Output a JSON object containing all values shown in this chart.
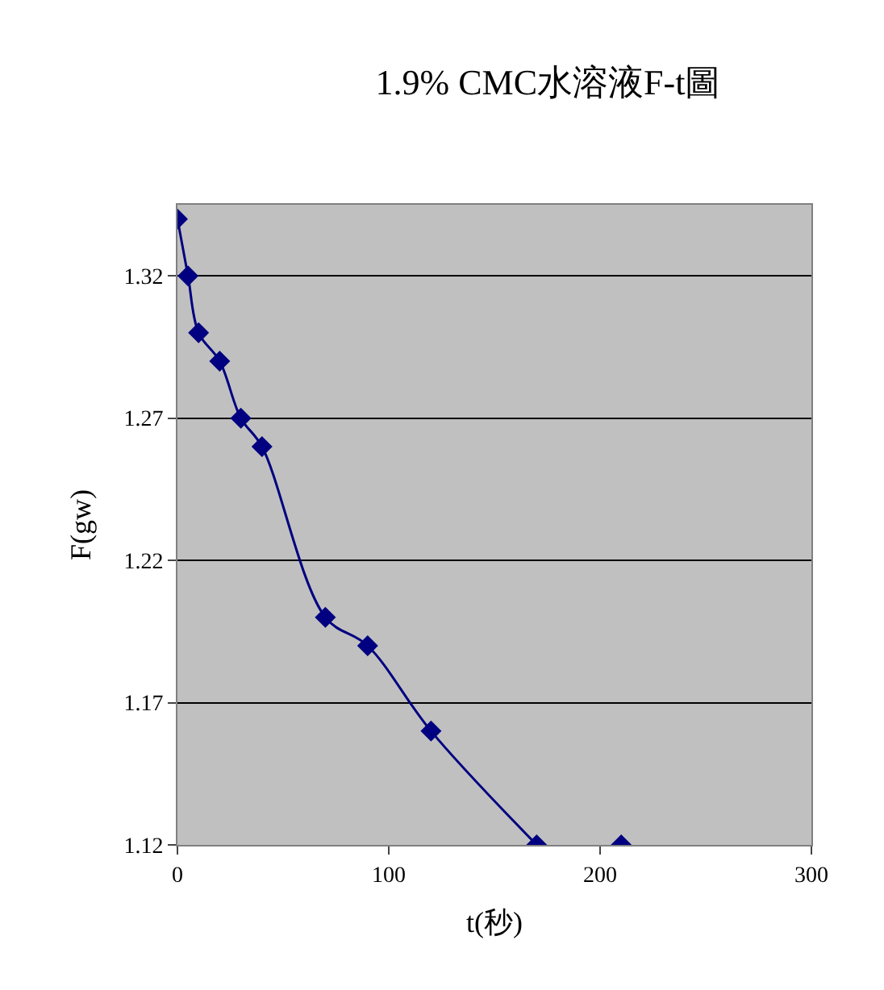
{
  "chart_data": {
    "type": "line",
    "title": "1.9% CMC水溶液F-t圖",
    "xlabel": "t(秒)",
    "ylabel": "F(gw)",
    "xlim": [
      0,
      300
    ],
    "xticks": [
      0,
      100,
      200,
      300
    ],
    "ylim": [
      1.12,
      1.345
    ],
    "yticks": [
      1.12,
      1.17,
      1.22,
      1.27,
      1.32
    ],
    "grid": "y",
    "marker": "diamond",
    "series": [
      {
        "color": "#000080",
        "x": [
          0,
          5,
          10,
          20,
          30,
          40,
          70,
          90,
          120,
          170
        ],
        "values": [
          1.34,
          1.32,
          1.3,
          1.29,
          1.27,
          1.26,
          1.2,
          1.19,
          1.16,
          1.12
        ]
      },
      {
        "type": "scatter",
        "color": "#000080",
        "x": [
          210
        ],
        "values": [
          1.12
        ]
      }
    ]
  }
}
